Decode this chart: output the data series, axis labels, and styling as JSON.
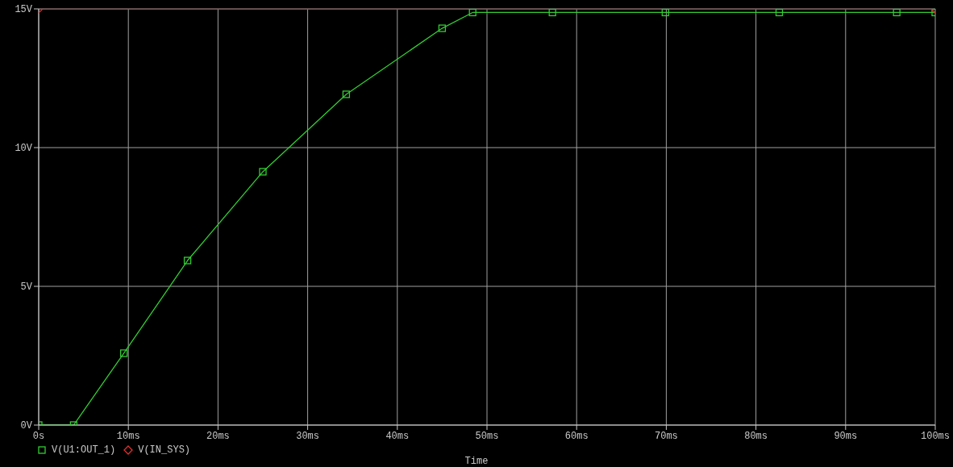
{
  "chart_data": {
    "type": "line",
    "xlabel": "Time",
    "xlim": [
      0,
      100
    ],
    "ylim": [
      0,
      15
    ],
    "xticks": [
      {
        "value": 0,
        "label": "0s"
      },
      {
        "value": 10,
        "label": "10ms"
      },
      {
        "value": 20,
        "label": "20ms"
      },
      {
        "value": 30,
        "label": "30ms"
      },
      {
        "value": 40,
        "label": "40ms"
      },
      {
        "value": 50,
        "label": "50ms"
      },
      {
        "value": 60,
        "label": "60ms"
      },
      {
        "value": 70,
        "label": "70ms"
      },
      {
        "value": 80,
        "label": "80ms"
      },
      {
        "value": 90,
        "label": "90ms"
      },
      {
        "value": 100,
        "label": "100ms"
      }
    ],
    "yticks": [
      {
        "value": 0,
        "label": "0V"
      },
      {
        "value": 5,
        "label": "5V"
      },
      {
        "value": 10,
        "label": "10V"
      },
      {
        "value": 15,
        "label": "15V"
      }
    ],
    "grid": true,
    "legend": "bottom left",
    "line_style": "solid",
    "series": [
      {
        "name": "V(U1:OUT_1)",
        "color": "#33cc33",
        "marker": "square",
        "x": [
          0,
          3.9,
          9.5,
          16.6,
          25.0,
          34.3,
          45.0,
          48.4,
          57.3,
          69.9,
          82.6,
          95.7,
          100
        ],
        "values": [
          0,
          0,
          2.59,
          5.93,
          9.13,
          11.92,
          14.3,
          14.87,
          14.87,
          14.87,
          14.87,
          14.87,
          14.87
        ]
      },
      {
        "name": "V(IN_SYS)",
        "color": "#e03030",
        "marker": "diamond",
        "x": [
          0,
          100
        ],
        "values": [
          15,
          15
        ]
      }
    ]
  }
}
